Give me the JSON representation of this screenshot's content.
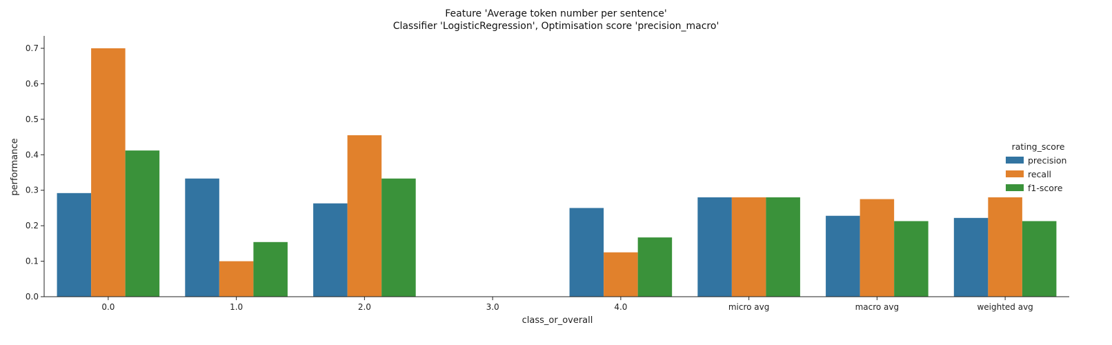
{
  "chart_data": {
    "type": "bar",
    "title": "Feature 'Average token number per sentence'",
    "subtitle": "Classifier 'LogisticRegression', Optimisation score 'precision_macro'",
    "xlabel": "class_or_overall",
    "ylabel": "performance",
    "ylim": [
      0,
      0.735
    ],
    "yticks": [
      "0.0",
      "0.1",
      "0.2",
      "0.3",
      "0.4",
      "0.5",
      "0.6",
      "0.7"
    ],
    "grid": false,
    "legend_title": "rating_score",
    "legend_position": "right",
    "categories": [
      "0.0",
      "1.0",
      "2.0",
      "3.0",
      "4.0",
      "micro avg",
      "macro avg",
      "weighted avg"
    ],
    "series": [
      {
        "name": "precision",
        "color": "#3274a1",
        "values": [
          0.292,
          0.333,
          0.263,
          0.0,
          0.25,
          0.28,
          0.228,
          0.222
        ]
      },
      {
        "name": "recall",
        "color": "#e1812c",
        "values": [
          0.7,
          0.1,
          0.455,
          0.0,
          0.125,
          0.28,
          0.275,
          0.28
        ]
      },
      {
        "name": "f1-score",
        "color": "#3a923a",
        "values": [
          0.412,
          0.154,
          0.333,
          0.0,
          0.167,
          0.28,
          0.213,
          0.213
        ]
      }
    ]
  }
}
